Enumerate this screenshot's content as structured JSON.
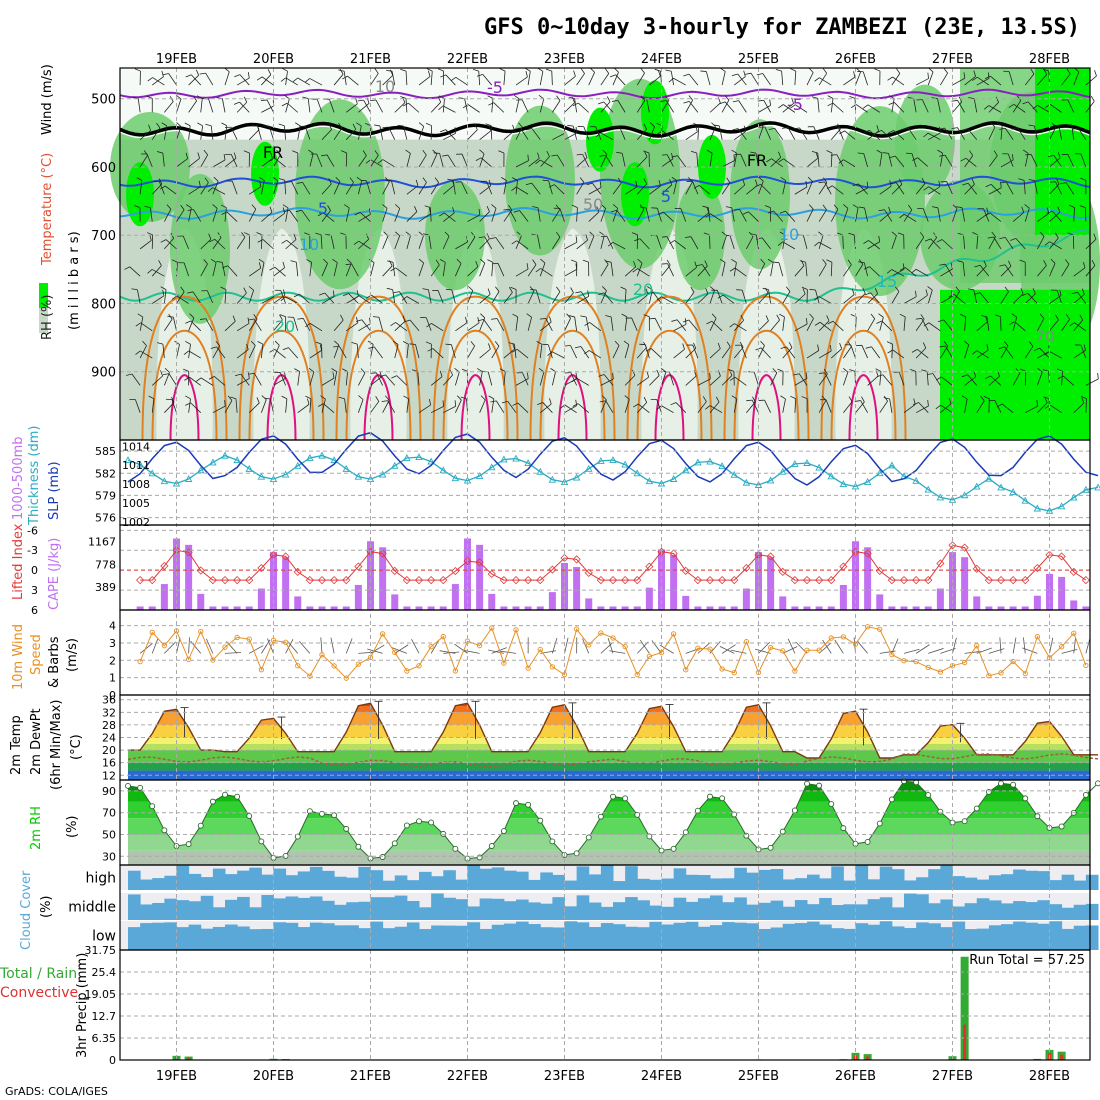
{
  "title": "GFS 0~10day 3-hourly for ZAMBEZI (23E, 13.5S)",
  "footer": "GrADS: COLA/IGES",
  "dates": [
    "19FEB",
    "20FEB",
    "21FEB",
    "22FEB",
    "23FEB",
    "24FEB",
    "25FEB",
    "26FEB",
    "27FEB",
    "28FEB"
  ],
  "colors": {
    "grid": "#aaaaaa",
    "rh_light": "#e6f0e6",
    "rh_mid": "#c8d8c8",
    "rh_green": "#6ccc6c",
    "rh_bright": "#00ee00",
    "temp_purple": "#8a1fc0",
    "freezing": "#000000",
    "iso5": "#2050d8",
    "iso10": "#2aa0e0",
    "iso15": "#20b8b8",
    "iso20": "#20c090",
    "iso_warm": "#e08020",
    "iso_hot": "#e01080",
    "thickness": "#2aacc4",
    "slp": "#1a3ab8",
    "li": "#e03a3a",
    "cape": "#c070f0",
    "wind": "#e89020",
    "temp_area": "#d84010",
    "rh2m": "#00cc00",
    "cloud": "#5aa8d8",
    "precip_total": "#33aa33",
    "precip_conv": "#e03030"
  },
  "panels": {
    "upper": {
      "labels": [
        "RH (%)",
        "Temperature (°C)",
        "Wind (m/s)",
        "(m i l l i b a r s)"
      ],
      "yticks": [
        "500",
        "600",
        "700",
        "800",
        "900"
      ],
      "contour_labels": [
        "-5",
        "-5",
        "FR",
        "FR",
        "5",
        "5",
        "10",
        "10",
        "15",
        "20",
        "20",
        "10",
        "50",
        "70"
      ]
    },
    "thickness": {
      "labels": [
        "1000-500mb",
        "Thickness (dm)",
        "SLP (mb)"
      ],
      "yticks_left": [
        "585",
        "582",
        "579",
        "576"
      ],
      "yticks_right": [
        "1014",
        "1011",
        "1008",
        "1005",
        "1002"
      ]
    },
    "cape": {
      "labels": [
        "Lifted Index",
        "CAPE (J/kg)"
      ],
      "yticks_left": [
        "-6",
        "-3",
        "0",
        "3",
        "6"
      ],
      "yticks_right": [
        "1167",
        "778",
        "389"
      ]
    },
    "wind": {
      "labels": [
        "10m Wind",
        "Speed",
        "& Barbs",
        "(m/s)"
      ],
      "yticks": [
        "4",
        "3",
        "2",
        "1",
        "0"
      ]
    },
    "temp": {
      "labels": [
        "2m Temp",
        "2m DewPt",
        "(6hr Min/Max)",
        "(°C)"
      ],
      "yticks": [
        "36",
        "32",
        "28",
        "24",
        "20",
        "16",
        "12"
      ]
    },
    "rh2m": {
      "labels": [
        "2m RH",
        "(%)"
      ],
      "yticks": [
        "90",
        "70",
        "50",
        "30"
      ]
    },
    "cloud": {
      "labels": [
        "Cloud Cover",
        "(%)"
      ],
      "levels": [
        "high",
        "middle",
        "low"
      ]
    },
    "precip": {
      "labels": [
        "Total / Rain",
        "Convective",
        "3hr Precip (mm)"
      ],
      "yticks": [
        "31.75",
        "25.4",
        "19.05",
        "12.7",
        "6.35",
        "0"
      ],
      "run_total": "Run Total = 57.25"
    }
  },
  "chart_data": [
    {
      "type": "line",
      "title": "1000-500mb Thickness (dm) / SLP (mb)",
      "x": [
        "19FEB",
        "20FEB",
        "21FEB",
        "22FEB",
        "23FEB",
        "24FEB",
        "25FEB",
        "26FEB",
        "27FEB",
        "28FEB"
      ],
      "series": [
        {
          "name": "Thickness (dm)",
          "values": [
            582.2,
            582.8,
            582.8,
            582.6,
            582.4,
            582.2,
            582.0,
            581.8,
            580.0,
            578.5
          ]
        },
        {
          "name": "SLP (mb)",
          "values": [
            1011.5,
            1012.5,
            1013.0,
            1012.8,
            1012.2,
            1011.8,
            1011.5,
            1011.0,
            1012.0,
            1012.5
          ]
        }
      ],
      "ylim_left": [
        576,
        586
      ],
      "ylim_right": [
        1002,
        1015
      ]
    },
    {
      "type": "bar",
      "title": "CAPE (J/kg) / Lifted Index",
      "x": [
        "19FEB",
        "20FEB",
        "21FEB",
        "22FEB",
        "23FEB",
        "24FEB",
        "25FEB",
        "26FEB",
        "27FEB",
        "28FEB"
      ],
      "series": [
        {
          "name": "CAPE daily max (J/kg)",
          "values": [
            1250,
            1000,
            1200,
            1250,
            800,
            1050,
            1000,
            1200,
            1000,
            600
          ]
        },
        {
          "name": "Lifted Index daily min",
          "values": [
            -3.2,
            -2.5,
            -3.0,
            -1.5,
            -2.0,
            -3.0,
            -2.5,
            -3.0,
            -4.0,
            -2.5
          ]
        }
      ],
      "ylim_left": [
        -6,
        6
      ],
      "ylim_right": [
        0,
        1400
      ]
    },
    {
      "type": "line",
      "title": "10m Wind Speed (m/s)",
      "x": [
        "19FEB",
        "20FEB",
        "21FEB",
        "22FEB",
        "23FEB",
        "24FEB",
        "25FEB",
        "26FEB",
        "27FEB",
        "28FEB"
      ],
      "series": [
        {
          "name": "Speed",
          "values": [
            2.4,
            2.2,
            2.3,
            2.6,
            2.5,
            2.4,
            2.0,
            2.6,
            2.5,
            2.6
          ]
        }
      ],
      "ylim": [
        0,
        5
      ]
    },
    {
      "type": "area",
      "title": "2m Temp / 2m DewPt (°C)",
      "x": [
        "19FEB",
        "20FEB",
        "21FEB",
        "22FEB",
        "23FEB",
        "24FEB",
        "25FEB",
        "26FEB",
        "27FEB",
        "28FEB"
      ],
      "series": [
        {
          "name": "Temp max",
          "values": [
            33.5,
            30.5,
            35.5,
            35.5,
            35.0,
            34.5,
            35.0,
            33.0,
            28.5,
            29.5
          ]
        },
        {
          "name": "Temp min",
          "values": [
            20.0,
            19.5,
            19.5,
            19.5,
            19.5,
            19.5,
            19.5,
            17.5,
            18.5,
            18.5
          ]
        },
        {
          "name": "DewPt",
          "values": [
            17.0,
            17.0,
            16.0,
            15.5,
            16.0,
            16.5,
            16.0,
            17.0,
            18.0,
            18.0
          ]
        }
      ],
      "ylim": [
        12,
        37
      ]
    },
    {
      "type": "area",
      "title": "2m RH (%)",
      "x": [
        "19FEB",
        "20FEB",
        "21FEB",
        "22FEB",
        "23FEB",
        "24FEB",
        "25FEB",
        "26FEB",
        "27FEB",
        "28FEB"
      ],
      "series": [
        {
          "name": "RH max",
          "values": [
            96,
            88,
            70,
            63,
            80,
            86,
            86,
            98,
            100,
            98
          ]
        },
        {
          "name": "RH min",
          "values": [
            38,
            27,
            27,
            27,
            30,
            34,
            35,
            40,
            60,
            55
          ]
        }
      ],
      "ylim": [
        25,
        100
      ]
    },
    {
      "type": "bar",
      "title": "3hr Precip (mm)",
      "x": [
        "19FEB",
        "20FEB",
        "21FEB",
        "22FEB",
        "23FEB",
        "24FEB",
        "25FEB",
        "26FEB",
        "27FEB",
        "28FEB"
      ],
      "series": [
        {
          "name": "Total / Rain daily max",
          "values": [
            1.4,
            0.4,
            0.1,
            0.0,
            0.0,
            0.0,
            0.2,
            2.4,
            29.8,
            3.4
          ]
        },
        {
          "name": "Convective daily max",
          "values": [
            0.8,
            0.2,
            0.0,
            0.0,
            0.0,
            0.0,
            0.1,
            1.4,
            10.2,
            2.2
          ]
        }
      ],
      "ylim": [
        0,
        31.75
      ],
      "annotation": "Run Total = 57.25"
    }
  ]
}
